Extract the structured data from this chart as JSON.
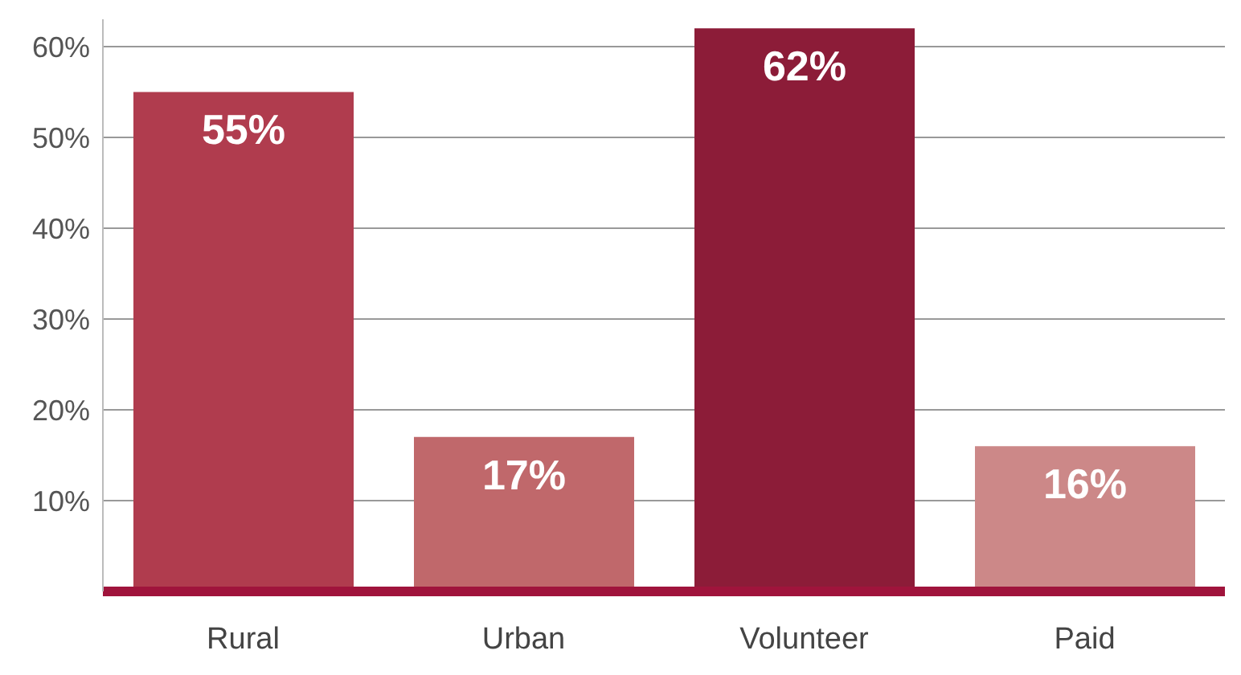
{
  "chart_data": {
    "type": "bar",
    "categories": [
      "Rural",
      "Urban",
      "Volunteer",
      "Paid"
    ],
    "values": [
      55,
      17,
      62,
      16
    ],
    "colors": [
      "#b03c4e",
      "#c0686b",
      "#8c1c38",
      "#cc8888"
    ],
    "value_labels": [
      "55%",
      "17%",
      "62%",
      "16%"
    ],
    "ylim": [
      0,
      63
    ],
    "yticks": [
      {
        "value": 0,
        "label": null
      },
      {
        "value": 10,
        "label": "10%"
      },
      {
        "value": 20,
        "label": "20%"
      },
      {
        "value": 30,
        "label": "30%"
      },
      {
        "value": 40,
        "label": "40%"
      },
      {
        "value": 50,
        "label": "50%"
      },
      {
        "value": 60,
        "label": "60%"
      }
    ],
    "grid": "y"
  }
}
